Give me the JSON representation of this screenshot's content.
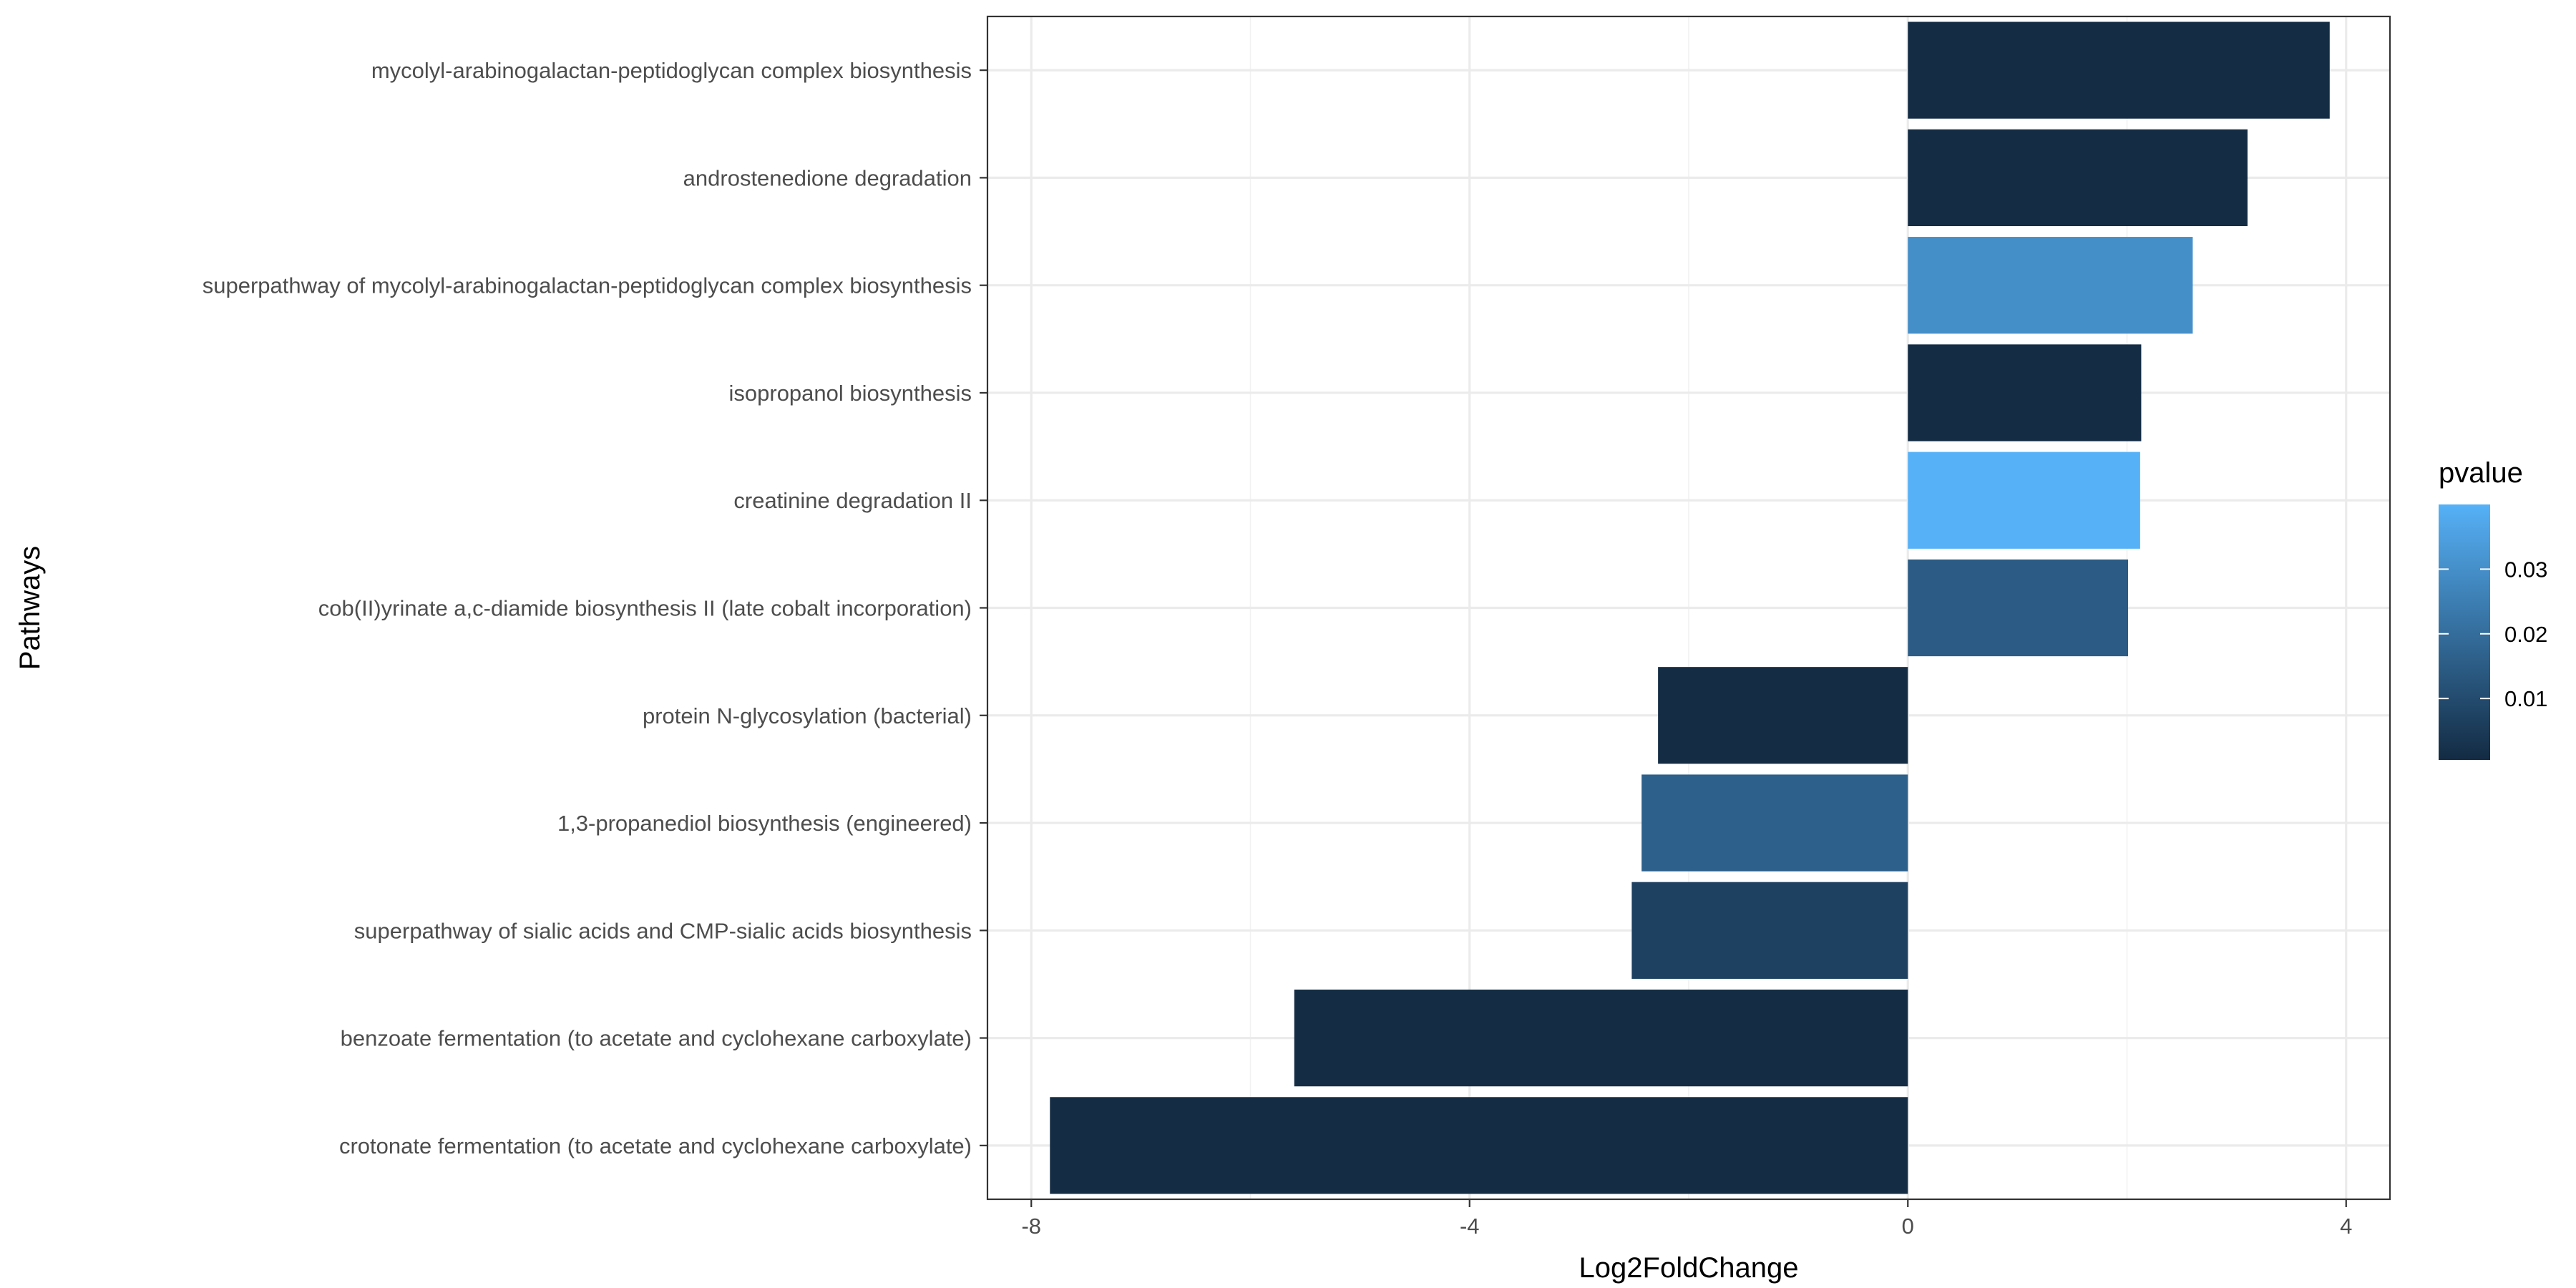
{
  "chart_data": {
    "type": "bar",
    "orientation": "horizontal",
    "xlabel": "Log2FoldChange",
    "ylabel": "Pathways",
    "xlim": [
      -8.4,
      4.4
    ],
    "xticks": [
      -8,
      -4,
      0,
      4
    ],
    "grid": true,
    "legend_position": "right",
    "legend": {
      "title": "pvalue",
      "type": "colorbar",
      "range": [
        0.0005,
        0.04
      ],
      "ticks": [
        0.01,
        0.02,
        0.03
      ],
      "low_color": "#132B43",
      "high_color": "#56B1F7"
    },
    "categories": [
      "mycolyl-arabinogalactan-peptidoglycan complex biosynthesis",
      "androstenedione degradation",
      "superpathway of mycolyl-arabinogalactan-peptidoglycan complex biosynthesis",
      "isopropanol biosynthesis",
      "creatinine degradation II",
      "cob(II)yrinate a,c-diamide biosynthesis II (late cobalt incorporation)",
      "protein N-glycosylation (bacterial)",
      "1,3-propanediol biosynthesis (engineered)",
      "superpathway of sialic acids and CMP-sialic acids biosynthesis",
      "benzoate fermentation (to acetate and cyclohexane carboxylate)",
      "crotonate fermentation (to acetate and cyclohexane carboxylate)"
    ],
    "values": [
      3.85,
      3.1,
      2.6,
      2.13,
      2.12,
      2.01,
      -2.28,
      -2.43,
      -2.52,
      -5.6,
      -7.83
    ],
    "pvalues": [
      0.001,
      0.001,
      0.03,
      0.001,
      0.04,
      0.015,
      0.001,
      0.016,
      0.007,
      0.001,
      0.001
    ]
  }
}
